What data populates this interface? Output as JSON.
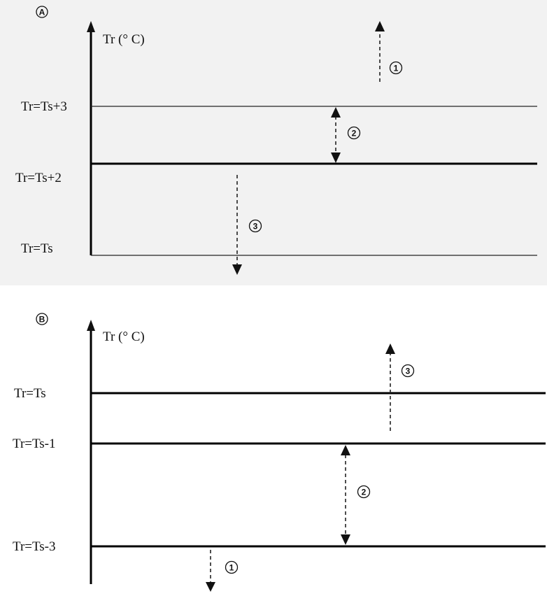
{
  "panel_a": {
    "letter": "A",
    "axis_label": "Tr (° C)",
    "levels": {
      "top": "Tr=Ts+3",
      "mid": "Tr=Ts+2",
      "bottom": "Tr=Ts"
    },
    "arrows": {
      "first": "1",
      "second": "2",
      "third": "3"
    }
  },
  "panel_b": {
    "letter": "B",
    "axis_label": "Tr (° C)",
    "levels": {
      "top": "Tr=Ts",
      "mid": "Tr=Ts-1",
      "bottom": "Tr=Ts-3"
    },
    "arrows": {
      "first": "1",
      "second": "2",
      "third": "3"
    }
  }
}
